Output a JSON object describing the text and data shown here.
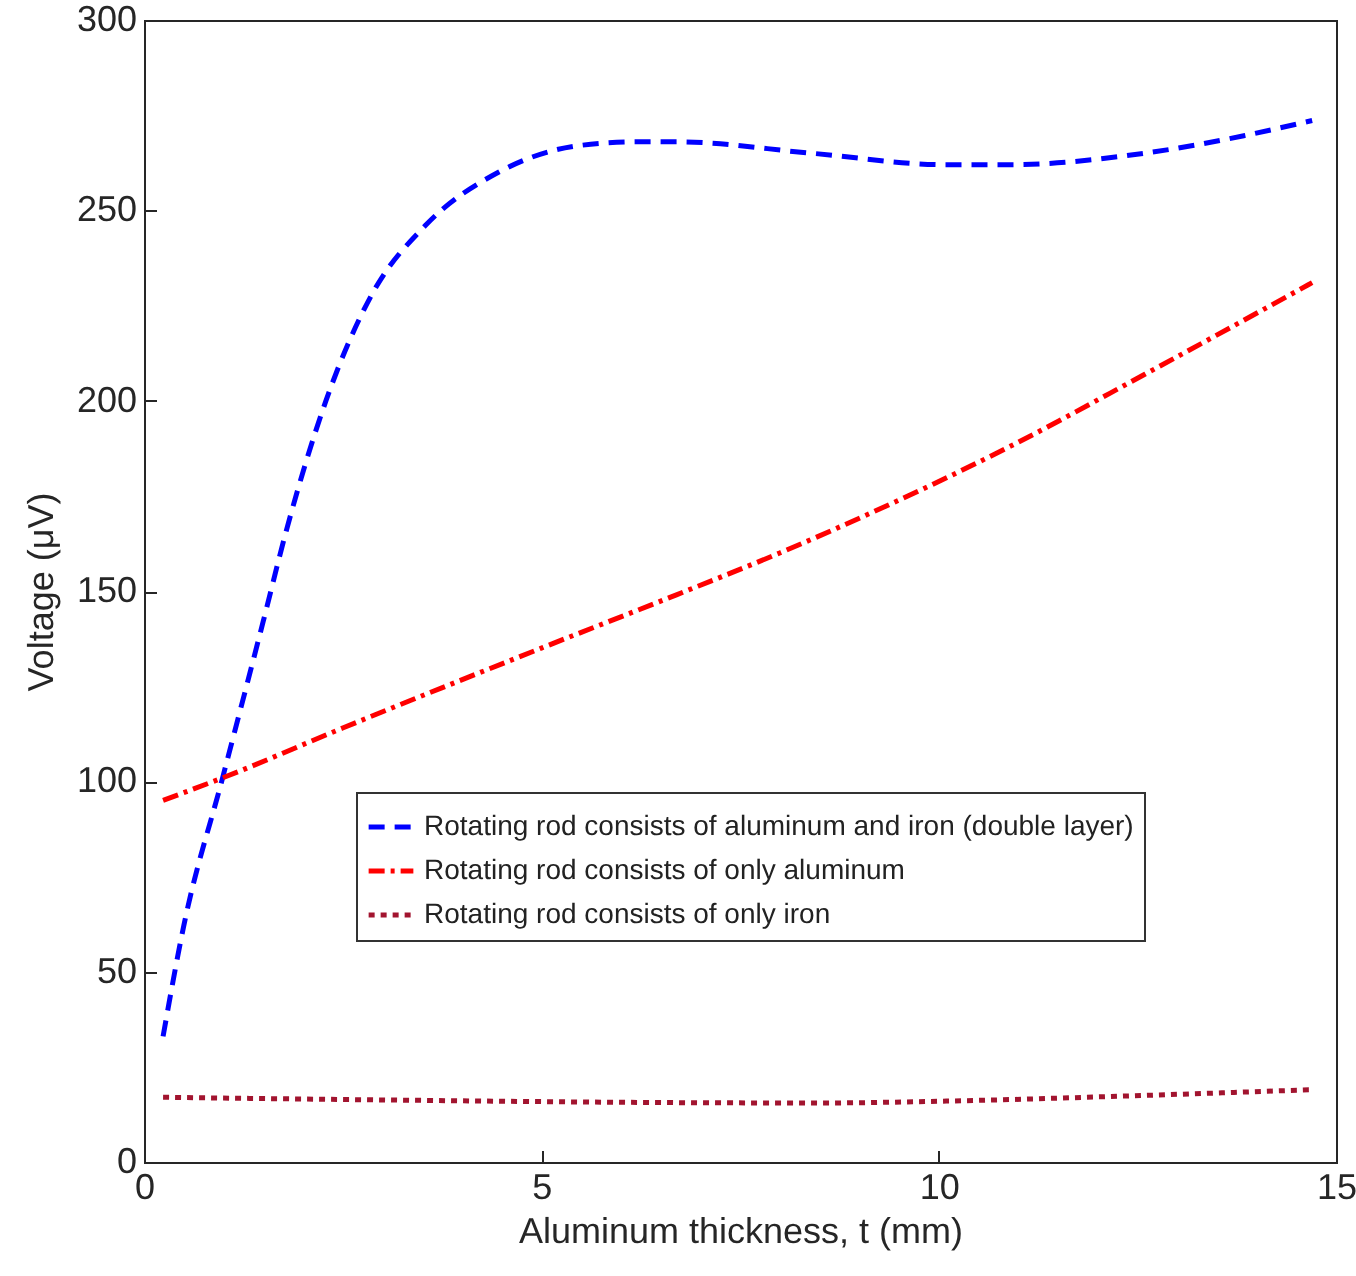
{
  "chart_data": {
    "type": "line",
    "xlabel": "Aluminum thickness, t (mm)",
    "ylabel": "Voltage (μV)",
    "xlim": [
      0,
      15
    ],
    "xticks": [
      0,
      5,
      10,
      15
    ],
    "ylim": [
      0,
      300
    ],
    "yticks": [
      0,
      50,
      100,
      150,
      200,
      250,
      300
    ],
    "grid": false,
    "legend": "right",
    "marker": "none",
    "series": [
      {
        "name": "Rotating rod consists of aluminum and iron (double layer)",
        "color": "#0000ff",
        "line_style": "dashed",
        "x": [
          0.24,
          0.5,
          0.99,
          1.5,
          1.78,
          2.29,
          2.87,
          3.54,
          4.46,
          5.47,
          6.22,
          6.72,
          8.4,
          10.08,
          10.9,
          12.59,
          13.84,
          14.7
        ],
        "values": [
          33,
          62,
          101,
          142,
          165,
          200,
          228,
          246,
          260,
          267,
          268,
          268,
          265,
          262,
          262,
          265,
          269.6,
          273.6
        ]
      },
      {
        "name": "Rotating rod consists of only aluminum",
        "color": "#ff0000",
        "line_style": "dashdot",
        "x": [
          0.24,
          1,
          2.5,
          5,
          6.7,
          8,
          9.2,
          10.9,
          12.6,
          14.7
        ],
        "values": [
          95,
          101,
          114,
          135,
          149,
          160,
          171,
          188,
          207,
          231
        ]
      },
      {
        "name": "Rotating rod consists of only iron",
        "color": "#a2142f",
        "line_style": "dotted",
        "x": [
          0.24,
          3,
          6.7,
          8.5,
          10.1,
          12.6,
          14.7
        ],
        "values": [
          17,
          16.3,
          15.6,
          15.5,
          16,
          17.5,
          19
        ]
      }
    ]
  }
}
